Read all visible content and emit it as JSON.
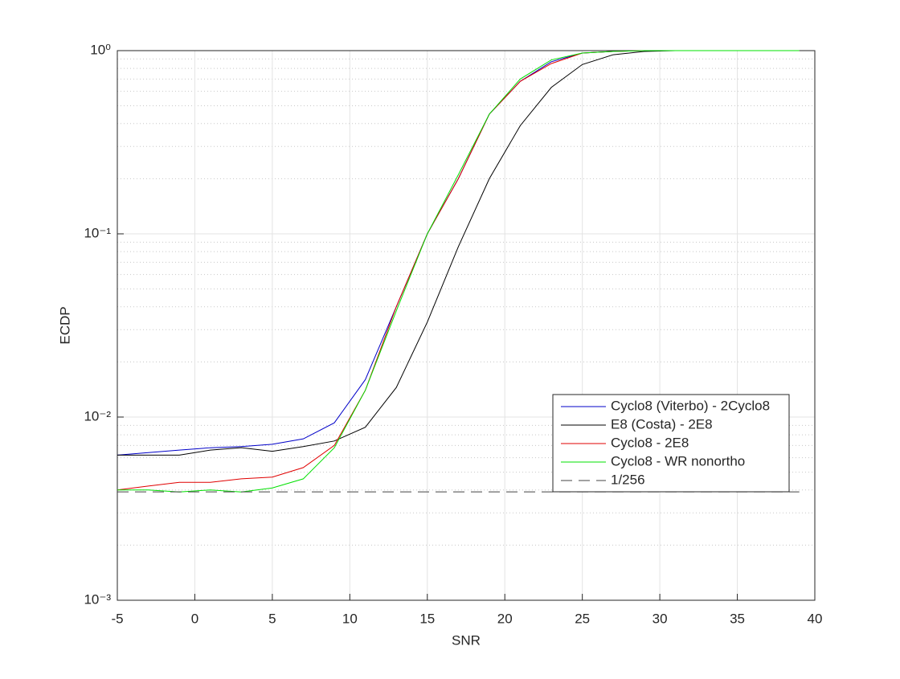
{
  "chart_data": {
    "type": "line",
    "xlabel": "SNR",
    "ylabel": "ECDP",
    "x": [
      -5,
      -3,
      -1,
      1,
      3,
      5,
      7,
      9,
      11,
      13,
      15,
      17,
      19,
      21,
      23,
      25,
      27,
      29,
      31,
      33,
      35,
      37,
      39
    ],
    "series": [
      {
        "name": "Cyclo8 (Viterbo) - 2Cyclo8",
        "color": "#0000c8",
        "dash": false,
        "values": [
          0.0062,
          0.0064,
          0.0066,
          0.0068,
          0.0069,
          0.0071,
          0.0076,
          0.0093,
          0.016,
          0.04,
          0.1,
          0.2,
          0.45,
          0.68,
          0.87,
          0.97,
          0.99,
          1,
          1,
          1,
          1,
          1,
          1
        ]
      },
      {
        "name": "E8 (Costa) - 2E8",
        "color": "#000000",
        "dash": false,
        "values": [
          0.0062,
          0.0062,
          0.0062,
          0.0066,
          0.0068,
          0.0065,
          0.0069,
          0.0074,
          0.0088,
          0.0145,
          0.033,
          0.085,
          0.2,
          0.39,
          0.63,
          0.84,
          0.95,
          0.99,
          1,
          1,
          1,
          1,
          1
        ]
      },
      {
        "name": "Cyclo8 - 2E8",
        "color": "#e00000",
        "dash": false,
        "values": [
          0.004,
          0.0042,
          0.0044,
          0.0044,
          0.0046,
          0.0047,
          0.0053,
          0.007,
          0.014,
          0.04,
          0.1,
          0.2,
          0.45,
          0.68,
          0.85,
          0.97,
          0.99,
          1,
          1,
          1,
          1,
          1,
          1
        ]
      },
      {
        "name": "Cyclo8 - WR nonortho",
        "color": "#00e000",
        "dash": false,
        "values": [
          0.004,
          0.004,
          0.0039,
          0.004,
          0.0039,
          0.0041,
          0.0046,
          0.0068,
          0.014,
          0.038,
          0.1,
          0.21,
          0.45,
          0.7,
          0.89,
          0.97,
          0.99,
          1,
          1,
          1,
          1,
          1,
          1
        ]
      },
      {
        "name": "1/256",
        "color": "#000000",
        "dash": true,
        "values": [
          0.00390625,
          0.00390625,
          0.00390625,
          0.00390625,
          0.00390625,
          0.00390625,
          0.00390625,
          0.00390625,
          0.00390625,
          0.00390625,
          0.00390625,
          0.00390625,
          0.00390625,
          0.00390625,
          0.00390625,
          0.00390625,
          0.00390625,
          0.00390625,
          0.00390625,
          0.00390625,
          0.00390625,
          0.00390625,
          0.00390625
        ]
      }
    ],
    "xlim": [
      -5,
      40
    ],
    "xticks": [
      -5,
      0,
      5,
      10,
      15,
      20,
      25,
      30,
      35,
      40
    ],
    "ylim": [
      0.001,
      1
    ],
    "ylog": true,
    "yticks": [
      {
        "value": 0.001,
        "label": "10⁻³"
      },
      {
        "value": 0.01,
        "label": "10⁻²"
      },
      {
        "value": 0.1,
        "label": "10⁻¹"
      },
      {
        "value": 1,
        "label": "10⁰"
      }
    ],
    "grid": true,
    "minor_grid": true,
    "legend": "lower right"
  }
}
